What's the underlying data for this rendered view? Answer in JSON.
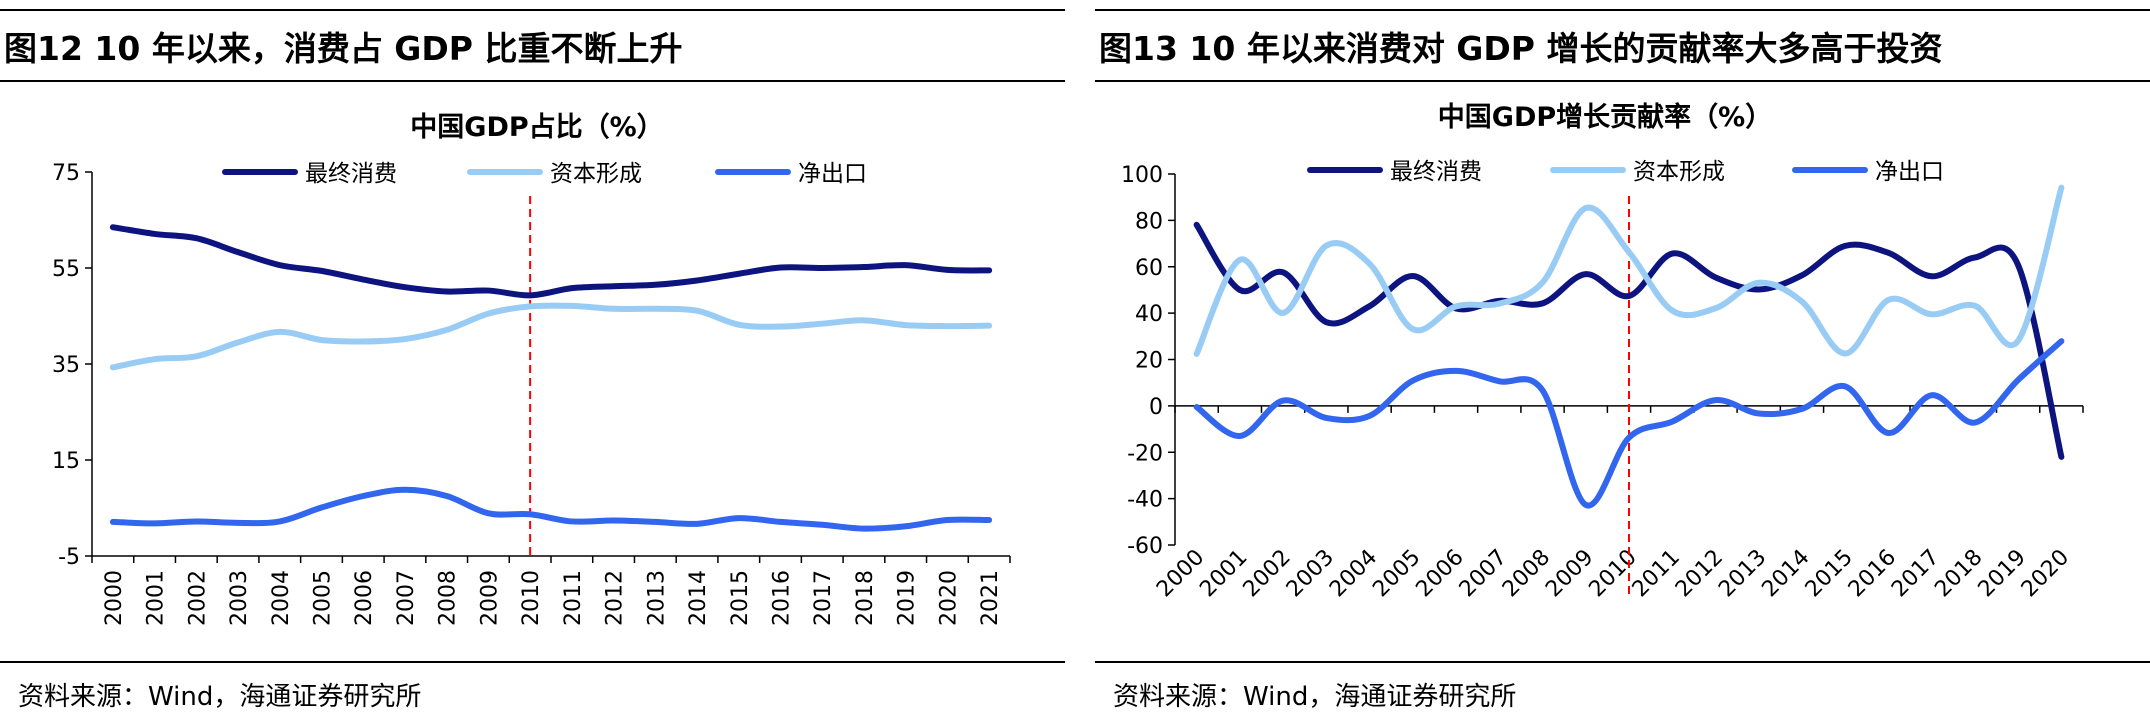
{
  "figures": [
    {
      "heading": "图12 10 年以来，消费占 GDP 比重不断上升",
      "source": "资料来源：Wind，海通证券研究所",
      "chart_data": {
        "type": "line",
        "title": "中国GDP占比（%）",
        "x": [
          "2000",
          "2001",
          "2002",
          "2003",
          "2004",
          "2005",
          "2006",
          "2007",
          "2008",
          "2009",
          "2010",
          "2011",
          "2012",
          "2013",
          "2014",
          "2015",
          "2016",
          "2017",
          "2018",
          "2019",
          "2020",
          "2021"
        ],
        "ylim": [
          -5,
          75
        ],
        "yticks": [
          -5,
          15,
          35,
          55,
          75
        ],
        "ytick_labels": [
          "-5",
          "15",
          "35",
          "55",
          "75"
        ],
        "marker_line_x": "2010",
        "marker_line_color": "#ff0000",
        "legend_position": "top",
        "series": [
          {
            "name": "最终消费",
            "color": "#0d1480",
            "values": [
              63.5,
              62.1,
              61.2,
              58.3,
              55.6,
              54.4,
              52.6,
              51.0,
              50.1,
              50.3,
              49.3,
              50.8,
              51.2,
              51.5,
              52.4,
              53.8,
              55.1,
              55.0,
              55.2,
              55.6,
              54.6,
              54.5
            ]
          },
          {
            "name": "资本形成",
            "color": "#99ccf5",
            "values": [
              34.3,
              36.0,
              36.6,
              39.5,
              41.7,
              40.0,
              39.7,
              40.2,
              42.1,
              45.5,
              47.0,
              47.1,
              46.5,
              46.5,
              46.1,
              43.2,
              42.8,
              43.4,
              44.1,
              43.1,
              42.9,
              43.0
            ]
          },
          {
            "name": "净出口",
            "color": "#3366ee",
            "values": [
              2.1,
              1.8,
              2.2,
              1.9,
              2.2,
              5.1,
              7.5,
              8.8,
              7.5,
              3.9,
              3.7,
              2.2,
              2.4,
              2.1,
              1.7,
              2.9,
              2.1,
              1.5,
              0.7,
              1.2,
              2.5,
              2.5
            ]
          }
        ]
      }
    },
    {
      "heading": "图13 10 年以来消费对 GDP 增长的贡献率大多高于投资",
      "source": "资料来源：Wind，海通证券研究所",
      "chart_data": {
        "type": "line",
        "title": "中国GDP增长贡献率（%）",
        "x": [
          "2000",
          "2001",
          "2002",
          "2003",
          "2004",
          "2005",
          "2006",
          "2007",
          "2008",
          "2009",
          "2010",
          "2011",
          "2012",
          "2013",
          "2014",
          "2015",
          "2016",
          "2017",
          "2018",
          "2019",
          "2020"
        ],
        "ylim": [
          -60,
          100
        ],
        "yticks": [
          -60,
          -40,
          -20,
          0,
          20,
          40,
          60,
          80,
          100
        ],
        "ytick_labels": [
          "-60",
          "-40",
          "-20",
          "0",
          "20",
          "40",
          "60",
          "80",
          "100"
        ],
        "marker_line_x": "2010",
        "marker_line_color": "#ff0000",
        "legend_position": "top",
        "series": [
          {
            "name": "最终消费",
            "color": "#0d1480",
            "values": [
              78.1,
              50.0,
              57.6,
              36.1,
              43.0,
              56.0,
              42.0,
              45.3,
              44.2,
              56.8,
              47.4,
              65.7,
              55.4,
              50.2,
              56.3,
              69.0,
              66.0,
              55.9,
              64.0,
              60.7,
              -22.0
            ]
          },
          {
            "name": "资本形成",
            "color": "#99ccf5",
            "values": [
              22.4,
              63.0,
              40.1,
              69.1,
              61.3,
              33.1,
              42.9,
              44.1,
              53.2,
              85.3,
              66.3,
              41.1,
              42.1,
              53.1,
              45.0,
              22.6,
              45.7,
              39.5,
              43.2,
              28.1,
              94.1
            ]
          },
          {
            "name": "净出口",
            "color": "#3366ee",
            "values": [
              -0.5,
              -13.0,
              2.3,
              -5.2,
              -4.3,
              10.9,
              15.1,
              10.6,
              6.7,
              -42.7,
              -13.7,
              -6.8,
              2.5,
              -3.3,
              -1.3,
              8.4,
              -11.7,
              4.6,
              -7.2,
              11.2,
              27.9
            ]
          }
        ]
      }
    }
  ]
}
